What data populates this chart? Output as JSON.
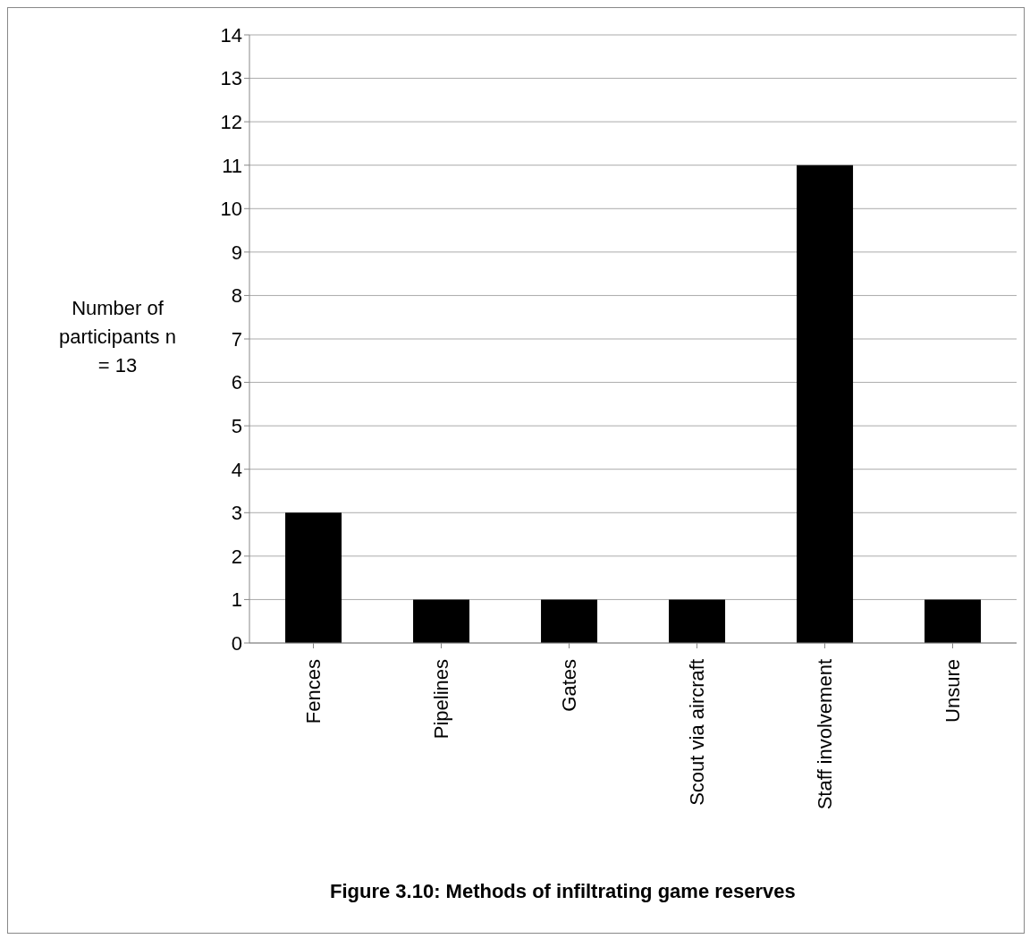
{
  "chart_data": {
    "type": "bar",
    "title": "Figure 3.10: Methods of infiltrating game reserves",
    "ylabel": "Number of participants n = 13",
    "categories": [
      "Fences",
      "Pipelines",
      "Gates",
      "Scout via aircraft",
      "Staff involvement",
      "Unsure"
    ],
    "values": [
      3,
      1,
      1,
      1,
      11,
      1
    ],
    "color": "#000000",
    "ylim": [
      0,
      14
    ],
    "yticks": [
      0,
      1,
      2,
      3,
      4,
      5,
      6,
      7,
      8,
      9,
      10,
      11,
      12,
      13,
      14
    ],
    "grid": "y"
  }
}
